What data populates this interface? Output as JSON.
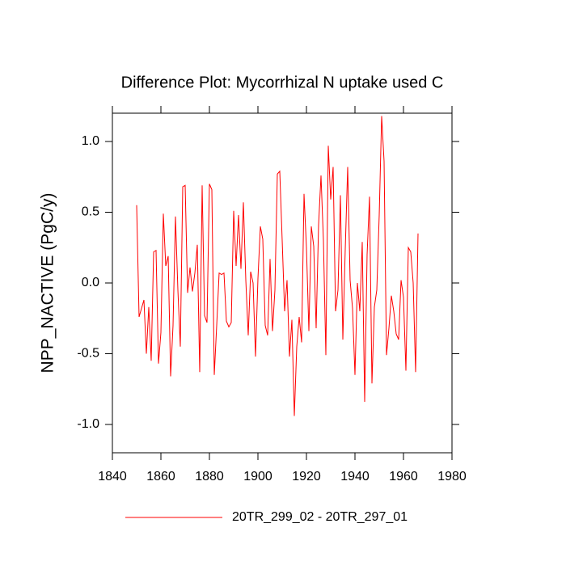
{
  "chart_data": {
    "type": "line",
    "title": "Difference Plot: Mycorrhizal N uptake used C",
    "y_label": "NPP_NACTIVE  (PgC/y)",
    "x": [
      1850,
      1851,
      1852,
      1853,
      1854,
      1855,
      1856,
      1857,
      1858,
      1859,
      1860,
      1861,
      1862,
      1863,
      1864,
      1865,
      1866,
      1867,
      1868,
      1869,
      1870,
      1871,
      1872,
      1873,
      1874,
      1875,
      1876,
      1877,
      1878,
      1879,
      1880,
      1881,
      1882,
      1883,
      1884,
      1885,
      1886,
      1887,
      1888,
      1889,
      1890,
      1891,
      1892,
      1893,
      1894,
      1895,
      1896,
      1897,
      1898,
      1899,
      1900,
      1901,
      1902,
      1903,
      1904,
      1905,
      1906,
      1907,
      1908,
      1909,
      1910,
      1911,
      1912,
      1913,
      1914,
      1915,
      1916,
      1917,
      1918,
      1919,
      1920,
      1921,
      1922,
      1923,
      1924,
      1925,
      1926,
      1927,
      1928,
      1929,
      1930,
      1931,
      1932,
      1933,
      1934,
      1935,
      1936,
      1937,
      1938,
      1939,
      1940,
      1941,
      1942,
      1943,
      1944,
      1945,
      1946,
      1947,
      1948,
      1949,
      1950,
      1951,
      1952,
      1953,
      1954,
      1955,
      1956,
      1957,
      1958,
      1959,
      1960,
      1961,
      1962,
      1963,
      1964,
      1965,
      1966
    ],
    "series": [
      {
        "name": "20TR_299_02 - 20TR_297_01",
        "color": "#ff0000",
        "values": [
          0.55,
          -0.24,
          -0.18,
          -0.12,
          -0.5,
          -0.17,
          -0.55,
          0.22,
          0.23,
          -0.57,
          -0.35,
          0.49,
          0.12,
          0.19,
          -0.66,
          -0.3,
          0.47,
          -0.05,
          -0.45,
          0.68,
          0.69,
          -0.07,
          0.11,
          -0.06,
          0.07,
          0.27,
          -0.63,
          0.69,
          -0.23,
          -0.28,
          0.7,
          0.66,
          -0.65,
          -0.3,
          0.07,
          0.06,
          0.07,
          -0.27,
          -0.31,
          -0.28,
          0.51,
          0.12,
          0.48,
          0.1,
          0.57,
          0.02,
          -0.37,
          0.08,
          0.0,
          -0.52,
          0.03,
          0.4,
          0.31,
          -0.3,
          -0.37,
          0.17,
          -0.34,
          -0.05,
          0.77,
          0.79,
          0.3,
          -0.2,
          0.02,
          -0.52,
          -0.26,
          -0.94,
          -0.45,
          -0.24,
          -0.42,
          0.63,
          0.25,
          -0.34,
          0.4,
          0.26,
          -0.32,
          0.41,
          0.76,
          0.3,
          -0.51,
          0.97,
          0.59,
          0.82,
          -0.2,
          -0.05,
          0.62,
          -0.4,
          0.24,
          0.82,
          0.02,
          -0.18,
          -0.65,
          0.0,
          -0.2,
          0.29,
          -0.84,
          0.2,
          0.61,
          -0.71,
          -0.17,
          -0.05,
          0.48,
          1.18,
          0.86,
          -0.51,
          -0.32,
          -0.09,
          -0.2,
          -0.36,
          -0.4,
          0.02,
          -0.1,
          -0.62,
          0.25,
          0.22,
          0.0,
          -0.63,
          0.35
        ]
      }
    ],
    "xlim": [
      1840,
      1980
    ],
    "xticks": [
      1840,
      1860,
      1880,
      1900,
      1920,
      1940,
      1960,
      1980
    ],
    "ylim": [
      -1.2,
      1.2
    ],
    "yticks": [
      {
        "value": -1,
        "label": "-1.0"
      },
      -0.5,
      {
        "value": 0,
        "label": "0.0"
      },
      0.5,
      {
        "value": 1,
        "label": "1.0"
      }
    ],
    "legend": "bottom"
  }
}
